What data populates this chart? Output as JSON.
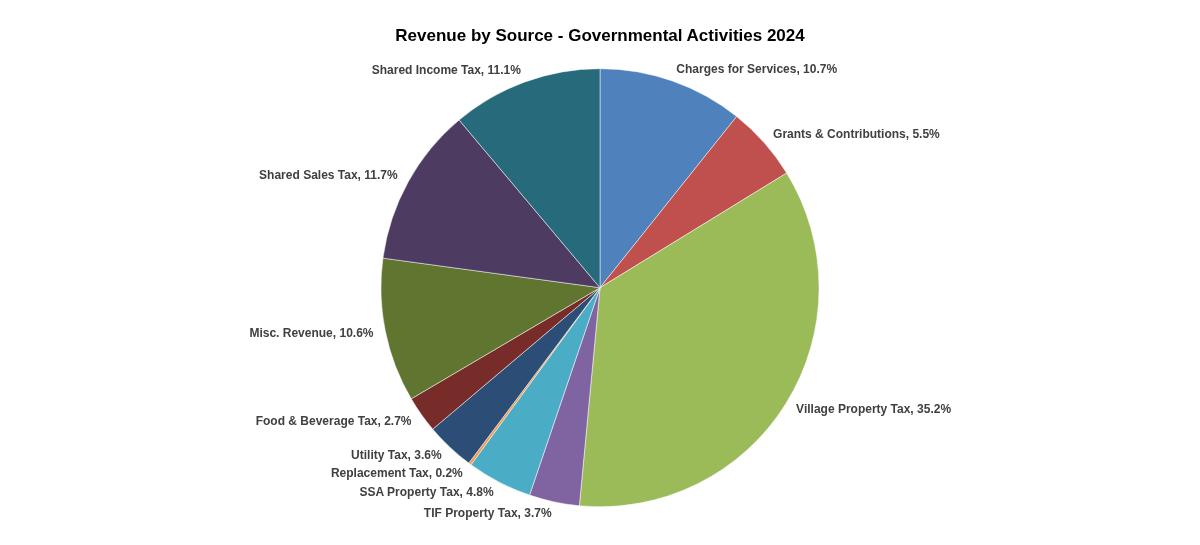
{
  "chart_data": {
    "type": "pie",
    "title": "Revenue by Source - Governmental Activities 2024",
    "categories": [
      "Charges for Services",
      "Grants & Contributions",
      "Village Property Tax",
      "TIF Property Tax",
      "SSA Property Tax",
      "Replacement Tax",
      "Utility Tax",
      "Food & Beverage Tax",
      "Misc. Revenue",
      "Shared Sales Tax",
      "Shared Income Tax"
    ],
    "values": [
      10.7,
      5.5,
      35.2,
      3.7,
      4.8,
      0.2,
      3.6,
      2.7,
      10.6,
      11.7,
      11.1
    ],
    "value_labels": [
      "10.7%",
      "5.5%",
      "35.2%",
      "3.7%",
      "4.8%",
      "0.2%",
      "3.6%",
      "2.7%",
      "10.6%",
      "11.7%",
      "11.1%"
    ],
    "colors": [
      "#4f81bd",
      "#c0504d",
      "#9bbb59",
      "#8064a2",
      "#4bacc6",
      "#f79646",
      "#2c4d75",
      "#772c2a",
      "#5f7530",
      "#4d3b62",
      "#276a7c"
    ],
    "legend": false
  }
}
